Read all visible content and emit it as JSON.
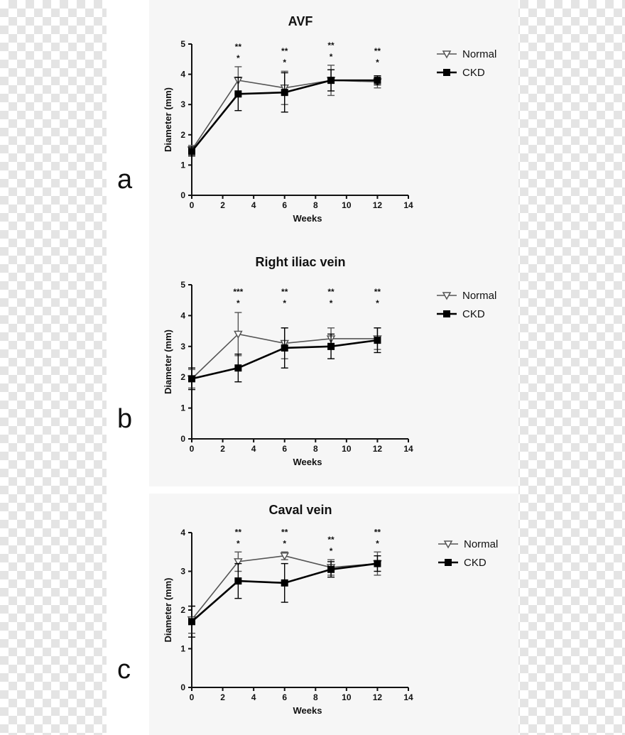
{
  "chart_data": [
    {
      "type": "line",
      "panel_letter": "a",
      "title": "AVF",
      "xlabel": "Weeks",
      "ylabel": "Diameter (mm)",
      "xlim": [
        0,
        14
      ],
      "ylim": [
        0,
        5
      ],
      "x_ticks": [
        0,
        2,
        4,
        6,
        8,
        10,
        12,
        14
      ],
      "y_ticks": [
        0,
        1,
        2,
        3,
        4,
        5
      ],
      "grid": false,
      "legend_position": "right",
      "x": [
        0,
        3,
        6,
        9,
        12
      ],
      "series": [
        {
          "name": "Normal",
          "marker": "open-triangle",
          "values": [
            1.5,
            3.8,
            3.55,
            3.8,
            3.75
          ],
          "errors": [
            0.15,
            0.45,
            0.55,
            0.5,
            0.2
          ]
        },
        {
          "name": "CKD",
          "marker": "filled-square",
          "values": [
            1.45,
            3.35,
            3.4,
            3.8,
            3.8
          ],
          "errors": [
            0.15,
            0.55,
            0.65,
            0.35,
            0.15
          ]
        }
      ],
      "significance": [
        {
          "x": 3,
          "top": "**",
          "bottom": "*"
        },
        {
          "x": 6,
          "top": "**",
          "bottom": "*"
        },
        {
          "x": 9,
          "top": "**",
          "bottom": "*"
        },
        {
          "x": 12,
          "top": "**",
          "bottom": "*"
        }
      ]
    },
    {
      "type": "line",
      "panel_letter": "b",
      "title": "Right iliac vein",
      "xlabel": "Weeks",
      "ylabel": "Diameter (mm)",
      "xlim": [
        0,
        14
      ],
      "ylim": [
        0,
        5
      ],
      "x_ticks": [
        0,
        2,
        4,
        6,
        8,
        10,
        12,
        14
      ],
      "y_ticks": [
        0,
        1,
        2,
        3,
        4,
        5
      ],
      "grid": false,
      "legend_position": "right",
      "x": [
        0,
        3,
        6,
        9,
        12
      ],
      "series": [
        {
          "name": "Normal",
          "marker": "open-triangle",
          "values": [
            1.95,
            3.4,
            3.1,
            3.25,
            3.25
          ],
          "errors": [
            0.3,
            0.7,
            0.5,
            0.35,
            0.35
          ]
        },
        {
          "name": "CKD",
          "marker": "filled-square",
          "values": [
            1.95,
            2.3,
            2.95,
            3.0,
            3.2
          ],
          "errors": [
            0.35,
            0.45,
            0.65,
            0.4,
            0.4
          ]
        }
      ],
      "significance": [
        {
          "x": 3,
          "top": "***",
          "bottom": "*"
        },
        {
          "x": 6,
          "top": "**",
          "bottom": "*"
        },
        {
          "x": 9,
          "top": "**",
          "bottom": "*"
        },
        {
          "x": 12,
          "top": "**",
          "bottom": "*"
        }
      ]
    },
    {
      "type": "line",
      "panel_letter": "c",
      "title": "Caval vein",
      "xlabel": "Weeks",
      "ylabel": "Diameter (mm)",
      "xlim": [
        0,
        14
      ],
      "ylim": [
        0,
        4
      ],
      "x_ticks": [
        0,
        2,
        4,
        6,
        8,
        10,
        12,
        14
      ],
      "y_ticks": [
        0,
        1,
        2,
        3,
        4
      ],
      "grid": false,
      "legend_position": "right",
      "x": [
        0,
        3,
        6,
        9,
        12
      ],
      "series": [
        {
          "name": "Normal",
          "marker": "open-triangle",
          "values": [
            1.75,
            3.25,
            3.4,
            3.1,
            3.2
          ],
          "errors": [
            0.35,
            0.25,
            0.1,
            0.2,
            0.3
          ]
        },
        {
          "name": "CKD",
          "marker": "filled-square",
          "values": [
            1.7,
            2.75,
            2.7,
            3.05,
            3.2
          ],
          "errors": [
            0.4,
            0.45,
            0.5,
            0.2,
            0.2
          ]
        }
      ],
      "significance": [
        {
          "x": 3,
          "top": "**",
          "bottom": "*"
        },
        {
          "x": 6,
          "top": "**",
          "bottom": "*"
        },
        {
          "x": 9,
          "top": "**",
          "bottom": "*"
        },
        {
          "x": 12,
          "top": "**",
          "bottom": "*"
        }
      ]
    }
  ]
}
